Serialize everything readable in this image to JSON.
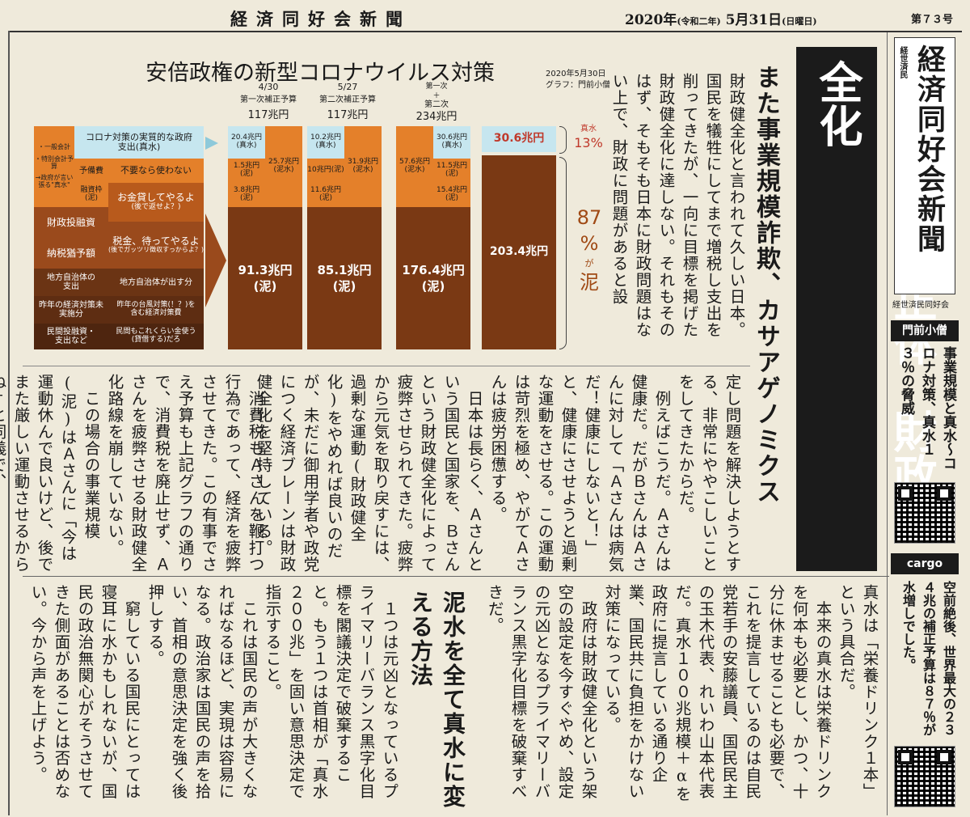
{
  "masthead": {
    "paper_name": "経済同好会新聞",
    "date_main": "2020年",
    "date_era": "(令和二年)",
    "date_day": "5月31日",
    "date_weekday": "(日曜日)",
    "issue_no": "第７３号"
  },
  "chart": {
    "title": "安倍政権の新型コロナウイルス対策",
    "credit_date": "2020年5月30日",
    "credit_by": "グラフ：門前小僧",
    "col1_date": "4/30",
    "col1_name": "第一次補正予算",
    "col1_total": "117兆円",
    "col2_date": "5/27",
    "col2_name": "第二次補正予算",
    "col2_total": "117兆円",
    "col3_name1": "第一次",
    "col3_plus": "＋",
    "col3_name2": "第二次",
    "col3_total": "234兆円",
    "leg_top_a": "・一般会計",
    "leg_top_b": "・特別会計予算",
    "leg_top_c": "→政府が言い張る\"真水\"",
    "leg_shinsui": "コロナ対策の実質的な政府支出(真水)",
    "leg_yobihi": "予備費",
    "leg_yobihi_note": "不要なら使わない",
    "leg_yushi": "融資枠(泥)",
    "leg_yushi_note": "お金貸してやるよ",
    "leg_yushi_sub": "(後で返せよ？)",
    "leg_zaito": "財政投融資",
    "leg_nouzei": "納税猶予額",
    "leg_nouzei_note": "税金、待ってやるよ",
    "leg_nouzei_sub": "(後でガッツリ徴収すっからよ？)",
    "leg_chiho": "地方自治体の支出",
    "leg_chiho_note": "地方自治体が出す分",
    "leg_sakunen": "昨年の経済対策未実施分",
    "leg_sakunen_note": "昨年の台風対策(！？)を含む経済対策費",
    "leg_minkan": "民間投融資・支出など",
    "leg_minkan_note": "民間もこれくらい金使う(貸借する)だろ",
    "c1_shinsui": "20.4兆円(真水)",
    "c1_yobi": "1.5兆円(泥)",
    "c1_yushi": "3.8兆円(泥)",
    "c1_right": "25.7兆円(泥水)",
    "c1_doro": "91.3兆円",
    "c1_doro_tag": "(泥)",
    "c2_shinsui": "10.2兆円(真水)",
    "c2_yobi": "10兆円(泥)",
    "c2_yushi": "11.6兆円(泥)",
    "c2_right": "31.9兆円(泥水)",
    "c2_doro": "85.1兆円",
    "c2_doro_tag": "(泥)",
    "c3_left": "57.6兆円(泥水)",
    "c3_shinsui": "30.6兆円(真水)",
    "c3_yobi": "11.5兆円(泥)",
    "c3_yushi": "15.4兆円(泥)",
    "c3_doro": "176.4兆円",
    "c3_doro_tag": "(泥)",
    "c4_shinsui": "30.6兆円",
    "c4_doro": "203.4兆円",
    "pct_shinsui_label": "真水",
    "pct_shinsui": "13%",
    "pct_doro_num": "87",
    "pct_doro_unit": "%",
    "pct_doro_ga": "が",
    "pct_doro_label": "泥"
  },
  "headline": {
    "main": "日本疲弊の正体　財政健全化",
    "sub": "また事業規模詐欺、カサアゲノミクス"
  },
  "article": {
    "top_right": "財政健全化と言われて久しい日本。国民を犠牲にしてまで増税し支出を削ってきたが、一向に目標を掲げた財政健全化に達しない。それもそのはず、そもそも日本に財政問題はない上で、財政に問題があると設",
    "mid_a": "定し問題を解決しようとする、非常にややこしいことをしてきたからだ。\n　例えばこうだ。Ａさんは健康だ。だがＢさんはＡさんに対して「Ａさんは病気だ！健康にしないと！」と、健康にさせようと過剰な運動をさせる。この運動は苛烈を極め、やがてＡさんは疲労困憊する。\n　日本は長らく、Ａさんという国民と国家を、Ｂさんという財政健全化によって疲弊させられてきた。疲弊から元気を取り戻すには、過剰な運動(財政健全化)をやめれば良いのだが、未だに御用学者や政党につく経済ブレーンは財政健全化を堅持している。",
    "mid_b": "　消費税もＡさんを鞭打つ行為であって、経済を疲弊させてきた。この有事でさえ予算も上記グラフの通りで、消費税を廃止せず、Ａさんを疲弊させる財政健全化路線を崩していない。\n　この場合の事業規模(泥)はＡさんに「今は運動休んで良いけど、後でまた厳しい運動させるからね」と同義で、",
    "bottom_a": "真水は「栄養ドリンク１本」という具合だ。\n　本来の真水は栄養ドリンクを何本も必要とし、かつ、十分に休ませることも必要で、これを提言しているのは自民党若手の安藤議員、国民民主の玉木代表、れいわ山本代表だ。真水１００兆規模＋αを政府に提言している通り企業、国民共に負担をかけない対策になっている。\n　政府は財政健全化という架空の設定を今すぐやめ、設定の元凶となるプライマリーバランス黒字化目標を破棄すべきだ。",
    "bottom_head": "泥水を全て真水に変える方法",
    "bottom_b": "　１つは元凶となっているプライマリーバランス黒字化目標を閣議決定で破棄すること。もう１つは首相が「真水２００兆」を固い意思決定で指示すること。\n　これは国民の声が大きくなればなるほど、実現は容易になる。政治家は国民の声を拾い、首相の意思決定を強く後押しする。\n　窮している国民にとっては寝耳に水かもしれないが、国民の政治無関心がそうさせてきた側面があることは否めない。今から声を上げよう。"
  },
  "sidebar": {
    "kanji_small": "経世済民",
    "logo": "経済同好会新聞",
    "publisher": "経世済民同好会",
    "section1_title": "門前小僧",
    "section1_text": "事業規模と真水～コロナ対策、真水１３％の脅威",
    "section2_title": "cargo",
    "section2_text": "空前絶後、世界最大の２３４兆の補正予算は８７％が水増しでした。"
  }
}
